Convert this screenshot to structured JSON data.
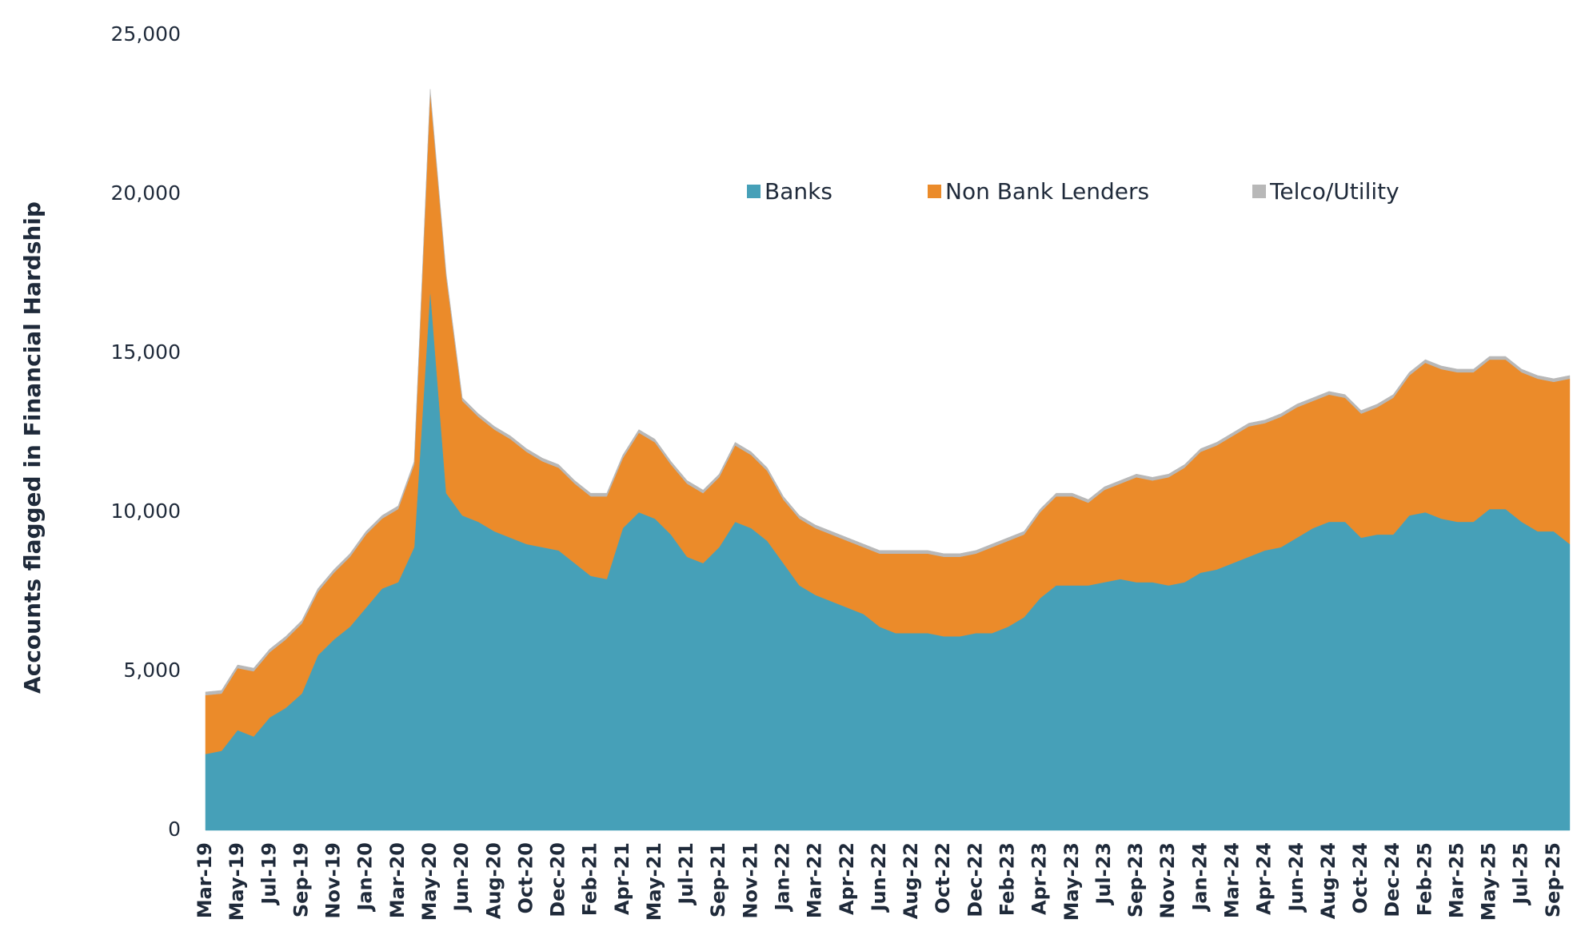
{
  "chart_data": {
    "type": "stacked_area",
    "y_label": "Accounts flagged in Financial Hardship",
    "categories": [
      "Mar-19",
      null,
      "May-19",
      null,
      "Jul-19",
      null,
      "Sep-19",
      null,
      "Nov-19",
      null,
      "Jan-20",
      null,
      "Mar-20",
      null,
      "May-20",
      null,
      "Jun-20",
      null,
      "Aug-20",
      null,
      "Oct-20",
      null,
      "Dec-20",
      null,
      "Feb-21",
      null,
      "Apr-21",
      null,
      "May-21",
      null,
      "Jul-21",
      null,
      "Sep-21",
      null,
      "Nov-21",
      null,
      "Jan-22",
      null,
      "Mar-22",
      null,
      "Apr-22",
      null,
      "Jun-22",
      null,
      "Aug-22",
      null,
      "Oct-22",
      null,
      "Dec-22",
      null,
      "Feb-23",
      null,
      "Apr-23",
      null,
      "May-23",
      null,
      "Jul-23",
      null,
      "Sep-23",
      null,
      "Nov-23",
      null,
      "Jan-24",
      null,
      "Mar-24",
      null,
      "Apr-24",
      null,
      "Jun-24",
      null,
      "Aug-24",
      null,
      "Oct-24",
      null,
      "Dec-24",
      null,
      "Feb-25",
      null,
      "Mar-25",
      null,
      "May-25",
      null,
      "Jul-25",
      null,
      "Sep-25",
      null
    ],
    "series": [
      {
        "name": "Banks",
        "color": "#46a0b8",
        "values": [
          2400,
          2500,
          3150,
          2950,
          3550,
          3850,
          4300,
          5500,
          6000,
          6400,
          7000,
          7600,
          7800,
          8900,
          17000,
          10600,
          9900,
          9700,
          9400,
          9200,
          9000,
          8900,
          8800,
          8400,
          8000,
          7900,
          9500,
          10000,
          9800,
          9300,
          8600,
          8400,
          8900,
          9700,
          9500,
          9100,
          8400,
          7700,
          7400,
          7200,
          7000,
          6800,
          6400,
          6200,
          6200,
          6200,
          6100,
          6100,
          6200,
          6200,
          6400,
          6700,
          7300,
          7700,
          7700,
          7700,
          7800,
          7900,
          7800,
          7800,
          7700,
          7800,
          8100,
          8200,
          8400,
          8600,
          8800,
          8900,
          9200,
          9500,
          9700,
          9700,
          9200,
          9300,
          9300,
          9900,
          10000,
          9800,
          9700,
          9700,
          10100,
          10100,
          9700,
          9400,
          9400,
          9000
        ]
      },
      {
        "name": "Non Bank Lenders",
        "color": "#eb8b2a",
        "values": [
          1850,
          1800,
          1950,
          2050,
          2050,
          2150,
          2200,
          2000,
          2100,
          2200,
          2300,
          2200,
          2300,
          2600,
          6200,
          6800,
          3600,
          3300,
          3200,
          3100,
          2900,
          2700,
          2600,
          2500,
          2500,
          2600,
          2200,
          2500,
          2400,
          2200,
          2300,
          2200,
          2200,
          2400,
          2300,
          2200,
          2000,
          2100,
          2100,
          2100,
          2100,
          2100,
          2300,
          2500,
          2500,
          2500,
          2500,
          2500,
          2500,
          2700,
          2700,
          2600,
          2700,
          2800,
          2800,
          2600,
          2900,
          3000,
          3300,
          3200,
          3400,
          3600,
          3800,
          3900,
          4000,
          4100,
          4000,
          4100,
          4100,
          4000,
          4000,
          3900,
          3900,
          4000,
          4300,
          4400,
          4700,
          4700,
          4700,
          4700,
          4700,
          4700,
          4700,
          4800,
          4700,
          5200
        ]
      },
      {
        "name": "Telco/Utility",
        "color": "#b8b8b8",
        "values": [
          100,
          100,
          100,
          100,
          100,
          100,
          100,
          100,
          100,
          100,
          100,
          100,
          100,
          100,
          100,
          100,
          100,
          100,
          100,
          100,
          100,
          100,
          100,
          100,
          100,
          100,
          100,
          100,
          100,
          100,
          100,
          100,
          100,
          100,
          100,
          100,
          100,
          100,
          100,
          100,
          100,
          100,
          100,
          100,
          100,
          100,
          100,
          100,
          100,
          100,
          100,
          100,
          100,
          100,
          100,
          100,
          100,
          100,
          100,
          100,
          100,
          100,
          100,
          100,
          100,
          100,
          100,
          100,
          100,
          100,
          100,
          100,
          100,
          100,
          100,
          100,
          100,
          100,
          100,
          100,
          100,
          100,
          100,
          100,
          100,
          100
        ]
      }
    ],
    "ylim": [
      0,
      25000
    ],
    "yticks": [
      0,
      {
        "value": 5000,
        "label": "5,000"
      },
      {
        "value": 10000,
        "label": "10,000"
      },
      {
        "value": 15000,
        "label": "15,000"
      },
      {
        "value": 20000,
        "label": "20,000"
      },
      {
        "value": 25000,
        "label": "25,000"
      }
    ],
    "grid": false
  }
}
